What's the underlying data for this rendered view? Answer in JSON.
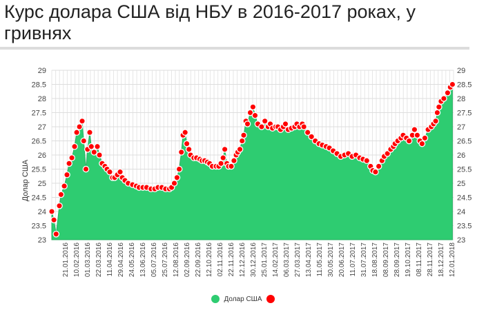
{
  "title": "Курс долара США від НБУ в 2016-2017 роках, у гривнях",
  "legend": {
    "area_label": "Долар США",
    "area_color": "#2ecc71",
    "marker_color": "#ff0000"
  },
  "chart_data": {
    "type": "area",
    "ylabel": "Долар США",
    "ylim": [
      23,
      29
    ],
    "yticks": [
      "23",
      "23.5",
      "24",
      "24.5",
      "25",
      "25.5",
      "26",
      "26.5",
      "27",
      "27.5",
      "28",
      "28.5",
      "29"
    ],
    "xlim": [
      "2016-01-04",
      "2018-01-14"
    ],
    "xtick_labels": [
      "21.01.2016",
      "10.02.2016",
      "01.03.2016",
      "22.03.2016",
      "11.04.2016",
      "29.04.2016",
      "24.05.2016",
      "13.06.2016",
      "05.07.2016",
      "25.07.2016",
      "12.08.2016",
      "02.09.2016",
      "22.09.2016",
      "12.10.2016",
      "02.11.2016",
      "22.11.2016",
      "12.12.2016",
      "30.12.2016",
      "25.01.2017",
      "14.02.2017",
      "06.03.2017",
      "27.03.2017",
      "13.04.2017",
      "11.05.2017",
      "30.05.2017",
      "20.06.2017",
      "11.07.2017",
      "31.07.2017",
      "18.08.2017",
      "08.09.2017",
      "28.09.2017",
      "19.10.2017",
      "08.11.2017",
      "28.11.2017",
      "18.12.2017",
      "12.01.2018"
    ],
    "grid": true,
    "series": [
      {
        "name": "Долар США",
        "points": [
          [
            "2016-01-04",
            24.0
          ],
          [
            "2016-01-08",
            23.7
          ],
          [
            "2016-01-12",
            23.2
          ],
          [
            "2016-01-18",
            24.2
          ],
          [
            "2016-01-21",
            24.6
          ],
          [
            "2016-01-27",
            24.9
          ],
          [
            "2016-02-01",
            25.3
          ],
          [
            "2016-02-05",
            25.7
          ],
          [
            "2016-02-10",
            25.9
          ],
          [
            "2016-02-15",
            26.3
          ],
          [
            "2016-02-19",
            26.8
          ],
          [
            "2016-02-24",
            27.0
          ],
          [
            "2016-02-29",
            27.2
          ],
          [
            "2016-03-03",
            26.5
          ],
          [
            "2016-03-07",
            25.5
          ],
          [
            "2016-03-10",
            26.2
          ],
          [
            "2016-03-14",
            26.8
          ],
          [
            "2016-03-17",
            26.3
          ],
          [
            "2016-03-22",
            26.1
          ],
          [
            "2016-03-28",
            26.3
          ],
          [
            "2016-04-01",
            26.0
          ],
          [
            "2016-04-06",
            25.7
          ],
          [
            "2016-04-11",
            25.6
          ],
          [
            "2016-04-15",
            25.5
          ],
          [
            "2016-04-20",
            25.4
          ],
          [
            "2016-04-25",
            25.2
          ],
          [
            "2016-04-29",
            25.2
          ],
          [
            "2016-05-04",
            25.3
          ],
          [
            "2016-05-09",
            25.4
          ],
          [
            "2016-05-13",
            25.2
          ],
          [
            "2016-05-18",
            25.1
          ],
          [
            "2016-05-24",
            25.0
          ],
          [
            "2016-06-01",
            24.95
          ],
          [
            "2016-06-08",
            24.9
          ],
          [
            "2016-06-13",
            24.85
          ],
          [
            "2016-06-20",
            24.85
          ],
          [
            "2016-06-27",
            24.85
          ],
          [
            "2016-07-05",
            24.8
          ],
          [
            "2016-07-12",
            24.8
          ],
          [
            "2016-07-18",
            24.85
          ],
          [
            "2016-07-25",
            24.85
          ],
          [
            "2016-08-01",
            24.8
          ],
          [
            "2016-08-08",
            24.8
          ],
          [
            "2016-08-12",
            24.85
          ],
          [
            "2016-08-17",
            25.0
          ],
          [
            "2016-08-22",
            25.2
          ],
          [
            "2016-08-26",
            25.5
          ],
          [
            "2016-08-30",
            26.1
          ],
          [
            "2016-09-02",
            26.7
          ],
          [
            "2016-09-06",
            26.8
          ],
          [
            "2016-09-09",
            26.4
          ],
          [
            "2016-09-13",
            26.2
          ],
          [
            "2016-09-16",
            26.0
          ],
          [
            "2016-09-22",
            25.9
          ],
          [
            "2016-09-27",
            25.9
          ],
          [
            "2016-10-03",
            25.85
          ],
          [
            "2016-10-07",
            25.8
          ],
          [
            "2016-10-12",
            25.8
          ],
          [
            "2016-10-17",
            25.75
          ],
          [
            "2016-10-21",
            25.7
          ],
          [
            "2016-10-26",
            25.6
          ],
          [
            "2016-11-02",
            25.6
          ],
          [
            "2016-11-07",
            25.6
          ],
          [
            "2016-11-11",
            25.7
          ],
          [
            "2016-11-15",
            25.9
          ],
          [
            "2016-11-18",
            26.2
          ],
          [
            "2016-11-22",
            25.7
          ],
          [
            "2016-11-25",
            25.6
          ],
          [
            "2016-11-30",
            25.6
          ],
          [
            "2016-12-05",
            25.8
          ],
          [
            "2016-12-09",
            26.0
          ],
          [
            "2016-12-12",
            26.1
          ],
          [
            "2016-12-16",
            26.2
          ],
          [
            "2016-12-20",
            26.5
          ],
          [
            "2016-12-23",
            26.7
          ],
          [
            "2016-12-27",
            27.2
          ],
          [
            "2016-12-30",
            27.1
          ],
          [
            "2017-01-04",
            27.5
          ],
          [
            "2017-01-09",
            27.7
          ],
          [
            "2017-01-13",
            27.4
          ],
          [
            "2017-01-18",
            27.1
          ],
          [
            "2017-01-25",
            27.0
          ],
          [
            "2017-01-31",
            27.2
          ],
          [
            "2017-02-06",
            27.0
          ],
          [
            "2017-02-10",
            27.1
          ],
          [
            "2017-02-14",
            26.95
          ],
          [
            "2017-02-20",
            27.0
          ],
          [
            "2017-02-24",
            27.0
          ],
          [
            "2017-03-01",
            26.9
          ],
          [
            "2017-03-06",
            27.0
          ],
          [
            "2017-03-10",
            27.1
          ],
          [
            "2017-03-15",
            26.9
          ],
          [
            "2017-03-21",
            26.95
          ],
          [
            "2017-03-27",
            27.0
          ],
          [
            "2017-03-31",
            27.1
          ],
          [
            "2017-04-05",
            27.0
          ],
          [
            "2017-04-10",
            27.1
          ],
          [
            "2017-04-13",
            27.0
          ],
          [
            "2017-04-20",
            26.8
          ],
          [
            "2017-04-27",
            26.65
          ],
          [
            "2017-05-04",
            26.5
          ],
          [
            "2017-05-11",
            26.4
          ],
          [
            "2017-05-17",
            26.35
          ],
          [
            "2017-05-24",
            26.3
          ],
          [
            "2017-05-30",
            26.25
          ],
          [
            "2017-06-06",
            26.15
          ],
          [
            "2017-06-13",
            26.05
          ],
          [
            "2017-06-20",
            25.95
          ],
          [
            "2017-06-27",
            26.0
          ],
          [
            "2017-07-04",
            26.05
          ],
          [
            "2017-07-11",
            25.95
          ],
          [
            "2017-07-18",
            26.0
          ],
          [
            "2017-07-25",
            25.9
          ],
          [
            "2017-07-31",
            25.85
          ],
          [
            "2017-08-07",
            25.8
          ],
          [
            "2017-08-14",
            25.6
          ],
          [
            "2017-08-18",
            25.45
          ],
          [
            "2017-08-23",
            25.4
          ],
          [
            "2017-08-29",
            25.6
          ],
          [
            "2017-09-04",
            25.8
          ],
          [
            "2017-09-08",
            25.95
          ],
          [
            "2017-09-14",
            26.05
          ],
          [
            "2017-09-20",
            26.2
          ],
          [
            "2017-09-25",
            26.3
          ],
          [
            "2017-09-28",
            26.4
          ],
          [
            "2017-10-03",
            26.5
          ],
          [
            "2017-10-09",
            26.6
          ],
          [
            "2017-10-13",
            26.7
          ],
          [
            "2017-10-19",
            26.6
          ],
          [
            "2017-10-24",
            26.5
          ],
          [
            "2017-10-30",
            26.7
          ],
          [
            "2017-11-03",
            26.9
          ],
          [
            "2017-11-08",
            26.7
          ],
          [
            "2017-11-13",
            26.5
          ],
          [
            "2017-11-17",
            26.4
          ],
          [
            "2017-11-22",
            26.6
          ],
          [
            "2017-11-28",
            26.9
          ],
          [
            "2017-12-04",
            27.0
          ],
          [
            "2017-12-08",
            27.1
          ],
          [
            "2017-12-12",
            27.2
          ],
          [
            "2017-12-15",
            27.5
          ],
          [
            "2017-12-18",
            27.7
          ],
          [
            "2017-12-22",
            27.9
          ],
          [
            "2017-12-27",
            28.0
          ],
          [
            "2018-01-03",
            28.2
          ],
          [
            "2018-01-08",
            28.4
          ],
          [
            "2018-01-12",
            28.5
          ]
        ]
      }
    ]
  }
}
